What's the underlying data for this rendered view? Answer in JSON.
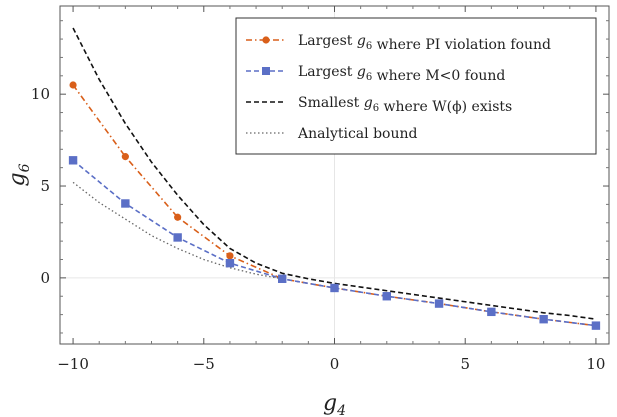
{
  "chart_data": {
    "type": "line",
    "title": "",
    "xlabel": "g4",
    "ylabel": "g6",
    "xlim": [
      -10.5,
      10.5
    ],
    "ylim": [
      -3.6,
      14.8
    ],
    "x_ticks": [
      -10,
      -5,
      0,
      5,
      10
    ],
    "y_ticks": [
      0,
      5,
      10
    ],
    "grid": true,
    "legend_position": "top-right",
    "series": [
      {
        "name": "Largest g6 where PI violation found",
        "color": "#d95f1a",
        "style": "dash-dot",
        "marker": "circle",
        "x": [
          -10,
          -8,
          -6,
          -4,
          -2,
          0,
          2,
          4,
          6,
          8,
          10
        ],
        "y": [
          10.5,
          6.6,
          3.3,
          1.2,
          -0.05,
          -0.55,
          -1.0,
          -1.4,
          -1.85,
          -2.25,
          -2.6
        ]
      },
      {
        "name": "Largest g6 where M<0 found",
        "color": "#5b6fc6",
        "style": "dashed",
        "marker": "square",
        "x": [
          -10,
          -8,
          -6,
          -4,
          -2,
          0,
          2,
          4,
          6,
          8,
          10
        ],
        "y": [
          6.4,
          4.05,
          2.2,
          0.8,
          -0.05,
          -0.55,
          -1.0,
          -1.4,
          -1.85,
          -2.25,
          -2.6
        ]
      },
      {
        "name": "Smallest g6 where W(ϕ) exists",
        "color": "#111111",
        "style": "dashed",
        "marker": "none",
        "x": [
          -10,
          -9,
          -8,
          -7,
          -6,
          -5,
          -4,
          -3,
          -2,
          -1,
          0,
          1,
          2,
          3,
          4,
          5,
          6,
          7,
          8,
          9,
          10
        ],
        "y": [
          13.6,
          10.8,
          8.4,
          6.3,
          4.5,
          2.9,
          1.6,
          0.8,
          0.25,
          -0.05,
          -0.3,
          -0.5,
          -0.7,
          -0.9,
          -1.1,
          -1.3,
          -1.5,
          -1.7,
          -1.9,
          -2.05,
          -2.25
        ]
      },
      {
        "name": "Analytical bound",
        "color": "#666666",
        "style": "dotted",
        "marker": "none",
        "x": [
          -10,
          -9,
          -8,
          -7,
          -6,
          -5,
          -4,
          -3,
          -2
        ],
        "y": [
          5.2,
          4.1,
          3.2,
          2.3,
          1.6,
          1.0,
          0.55,
          0.2,
          -0.05
        ]
      }
    ]
  }
}
